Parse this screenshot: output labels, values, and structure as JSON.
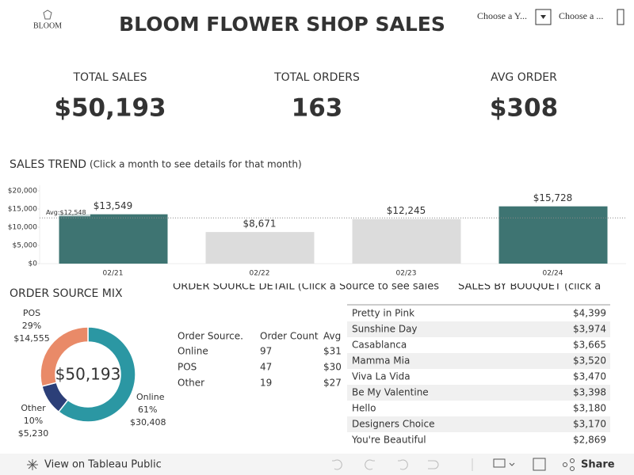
{
  "header": {
    "logo": "BLOOM",
    "title": "BLOOM FLOWER SHOP SALES",
    "filters": [
      "Choose a Y...",
      "Choose a ..."
    ]
  },
  "kpis": [
    {
      "label": "TOTAL SALES",
      "value": "$50,193"
    },
    {
      "label": "TOTAL ORDERS",
      "value": "163"
    },
    {
      "label": "AVG ORDER",
      "value": "$308"
    }
  ],
  "chart_data": [
    {
      "type": "bar",
      "title": "SALES TREND",
      "subtitle": "(Click a month to see details for that month)",
      "categories": [
        "02/21",
        "02/22",
        "02/23",
        "02/24"
      ],
      "values": [
        13549,
        8671,
        12245,
        15728
      ],
      "value_labels": [
        "$13,549",
        "$8,671",
        "$12,245",
        "$15,728"
      ],
      "colors": [
        "#3e7472",
        "#dcdcdc",
        "#dcdcdc",
        "#3e7472"
      ],
      "ylim": [
        0,
        20000
      ],
      "yticks": [
        {
          "value": 0,
          "label": "$0"
        },
        {
          "value": 5000,
          "label": "$5,000"
        },
        {
          "value": 10000,
          "label": "$10,000"
        },
        {
          "value": 15000,
          "label": "$15,000"
        },
        {
          "value": 20000,
          "label": "$20,000"
        }
      ],
      "reference_line": {
        "value": 12548,
        "label": "Avg:$12,548"
      }
    },
    {
      "type": "pie",
      "title": "ORDER SOURCE MIX",
      "categories": [
        "Online",
        "Other",
        "POS"
      ],
      "values": [
        30408,
        5230,
        14555
      ],
      "value_labels": [
        "$30,408",
        "$5,230",
        "$14,555"
      ],
      "percents": [
        61,
        10,
        29
      ],
      "percent_labels": [
        "61%",
        "10%",
        "29%"
      ],
      "colors": [
        "#2b97a3",
        "#2c3f78",
        "#e98a68"
      ],
      "total": 50193,
      "total_label": "$50,193"
    }
  ],
  "order_source_detail": {
    "title": "ORDER SOURCE DETAIL (Click a Source to see sales",
    "columns": [
      "Order Source.",
      "Order Count",
      "Avg"
    ],
    "rows": [
      [
        "Online",
        "97",
        "$31"
      ],
      [
        "POS",
        "47",
        "$30"
      ],
      [
        "Other",
        "19",
        "$27"
      ]
    ]
  },
  "sales_by_bouquet": {
    "title": "SALES BY BOUQUET (click a",
    "rows": [
      [
        "Pretty in Pink",
        "$4,399"
      ],
      [
        "Sunshine Day",
        "$3,974"
      ],
      [
        "Casablanca",
        "$3,665"
      ],
      [
        "Mamma Mia",
        "$3,520"
      ],
      [
        "Viva La Vida",
        "$3,470"
      ],
      [
        "Be My Valentine",
        "$3,398"
      ],
      [
        "Hello",
        "$3,180"
      ],
      [
        "Designers Choice",
        "$3,170"
      ],
      [
        "You're Beautiful",
        "$2,869"
      ]
    ]
  },
  "toolbar": {
    "view": "View on Tableau Public",
    "share": "Share"
  }
}
